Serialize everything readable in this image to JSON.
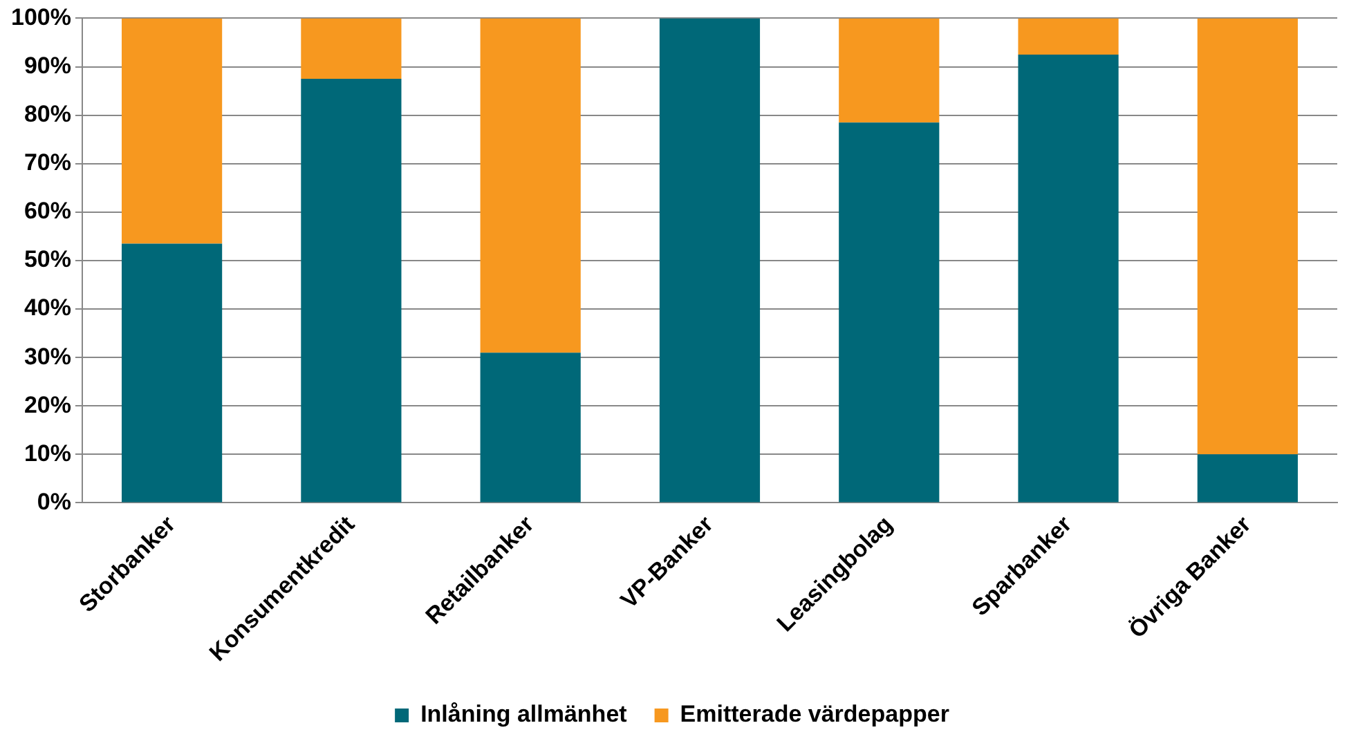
{
  "chart_data": {
    "type": "bar",
    "stacked": true,
    "categories": [
      "Storbanker",
      "Konsumentkredit",
      "Retailbanker",
      "VP-Banker",
      "Leasingbolag",
      "Sparbanker",
      "Övriga Banker"
    ],
    "series": [
      {
        "name": "Inlåning allmänhet",
        "color": "#006878",
        "values": [
          53.5,
          87.5,
          31,
          100,
          78.5,
          92.5,
          10
        ]
      },
      {
        "name": "Emitterade värdepapper",
        "color": "#f7981f",
        "values": [
          46.5,
          12.5,
          69,
          0,
          21.5,
          7.5,
          90
        ]
      }
    ],
    "ylim": [
      0,
      100
    ],
    "yticks": [
      {
        "value": 0,
        "label": "0%"
      },
      {
        "value": 10,
        "label": "10%"
      },
      {
        "value": 20,
        "label": "20%"
      },
      {
        "value": 30,
        "label": "30%"
      },
      {
        "value": 40,
        "label": "40%"
      },
      {
        "value": 50,
        "label": "50%"
      },
      {
        "value": 60,
        "label": "60%"
      },
      {
        "value": 70,
        "label": "70%"
      },
      {
        "value": 80,
        "label": "80%"
      },
      {
        "value": 90,
        "label": "90%"
      },
      {
        "value": 100,
        "label": "100%"
      }
    ],
    "grid": "y",
    "legend": "bottom"
  }
}
